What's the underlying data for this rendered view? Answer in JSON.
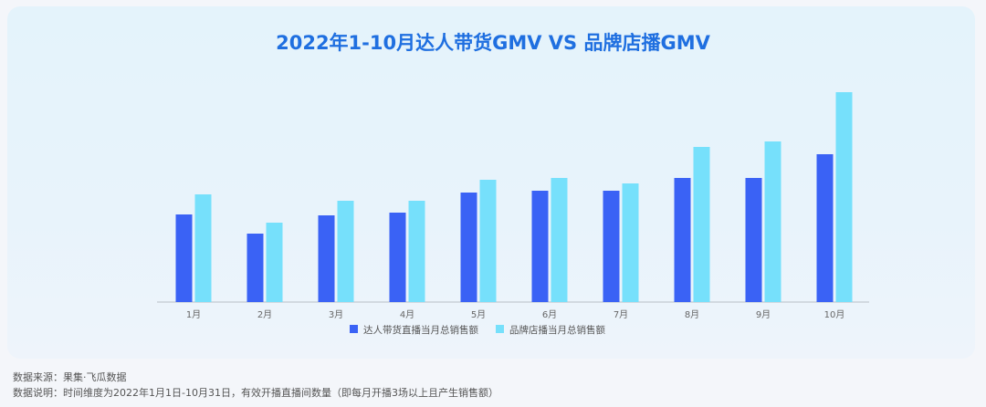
{
  "chart_data": {
    "type": "bar",
    "title": "2022年1-10月达人带货GMV VS 品牌店播GMV",
    "categories": [
      "1月",
      "2月",
      "3月",
      "4月",
      "5月",
      "6月",
      "7月",
      "8月",
      "9月",
      "10月"
    ],
    "series": [
      {
        "name": "达人带货直播当月总销售额",
        "color": "#3a62f5",
        "values": [
          96,
          75,
          95,
          98,
          120,
          122,
          122,
          136,
          136,
          162
        ]
      },
      {
        "name": "品牌店播当月总销售额",
        "color": "#76e0fb",
        "values": [
          118,
          87,
          111,
          111,
          134,
          136,
          130,
          170,
          176,
          230
        ]
      }
    ],
    "ylim": [
      0,
      240
    ],
    "grid": false,
    "legend_position": "bottom",
    "xlabel": "",
    "ylabel": ""
  },
  "footer": {
    "source": "数据来源：果集·飞瓜数据",
    "description": "数据说明：时间维度为2022年1月1日-10月31日，有效开播直播间数量（即每月开播3场以上且产生销售额）"
  }
}
